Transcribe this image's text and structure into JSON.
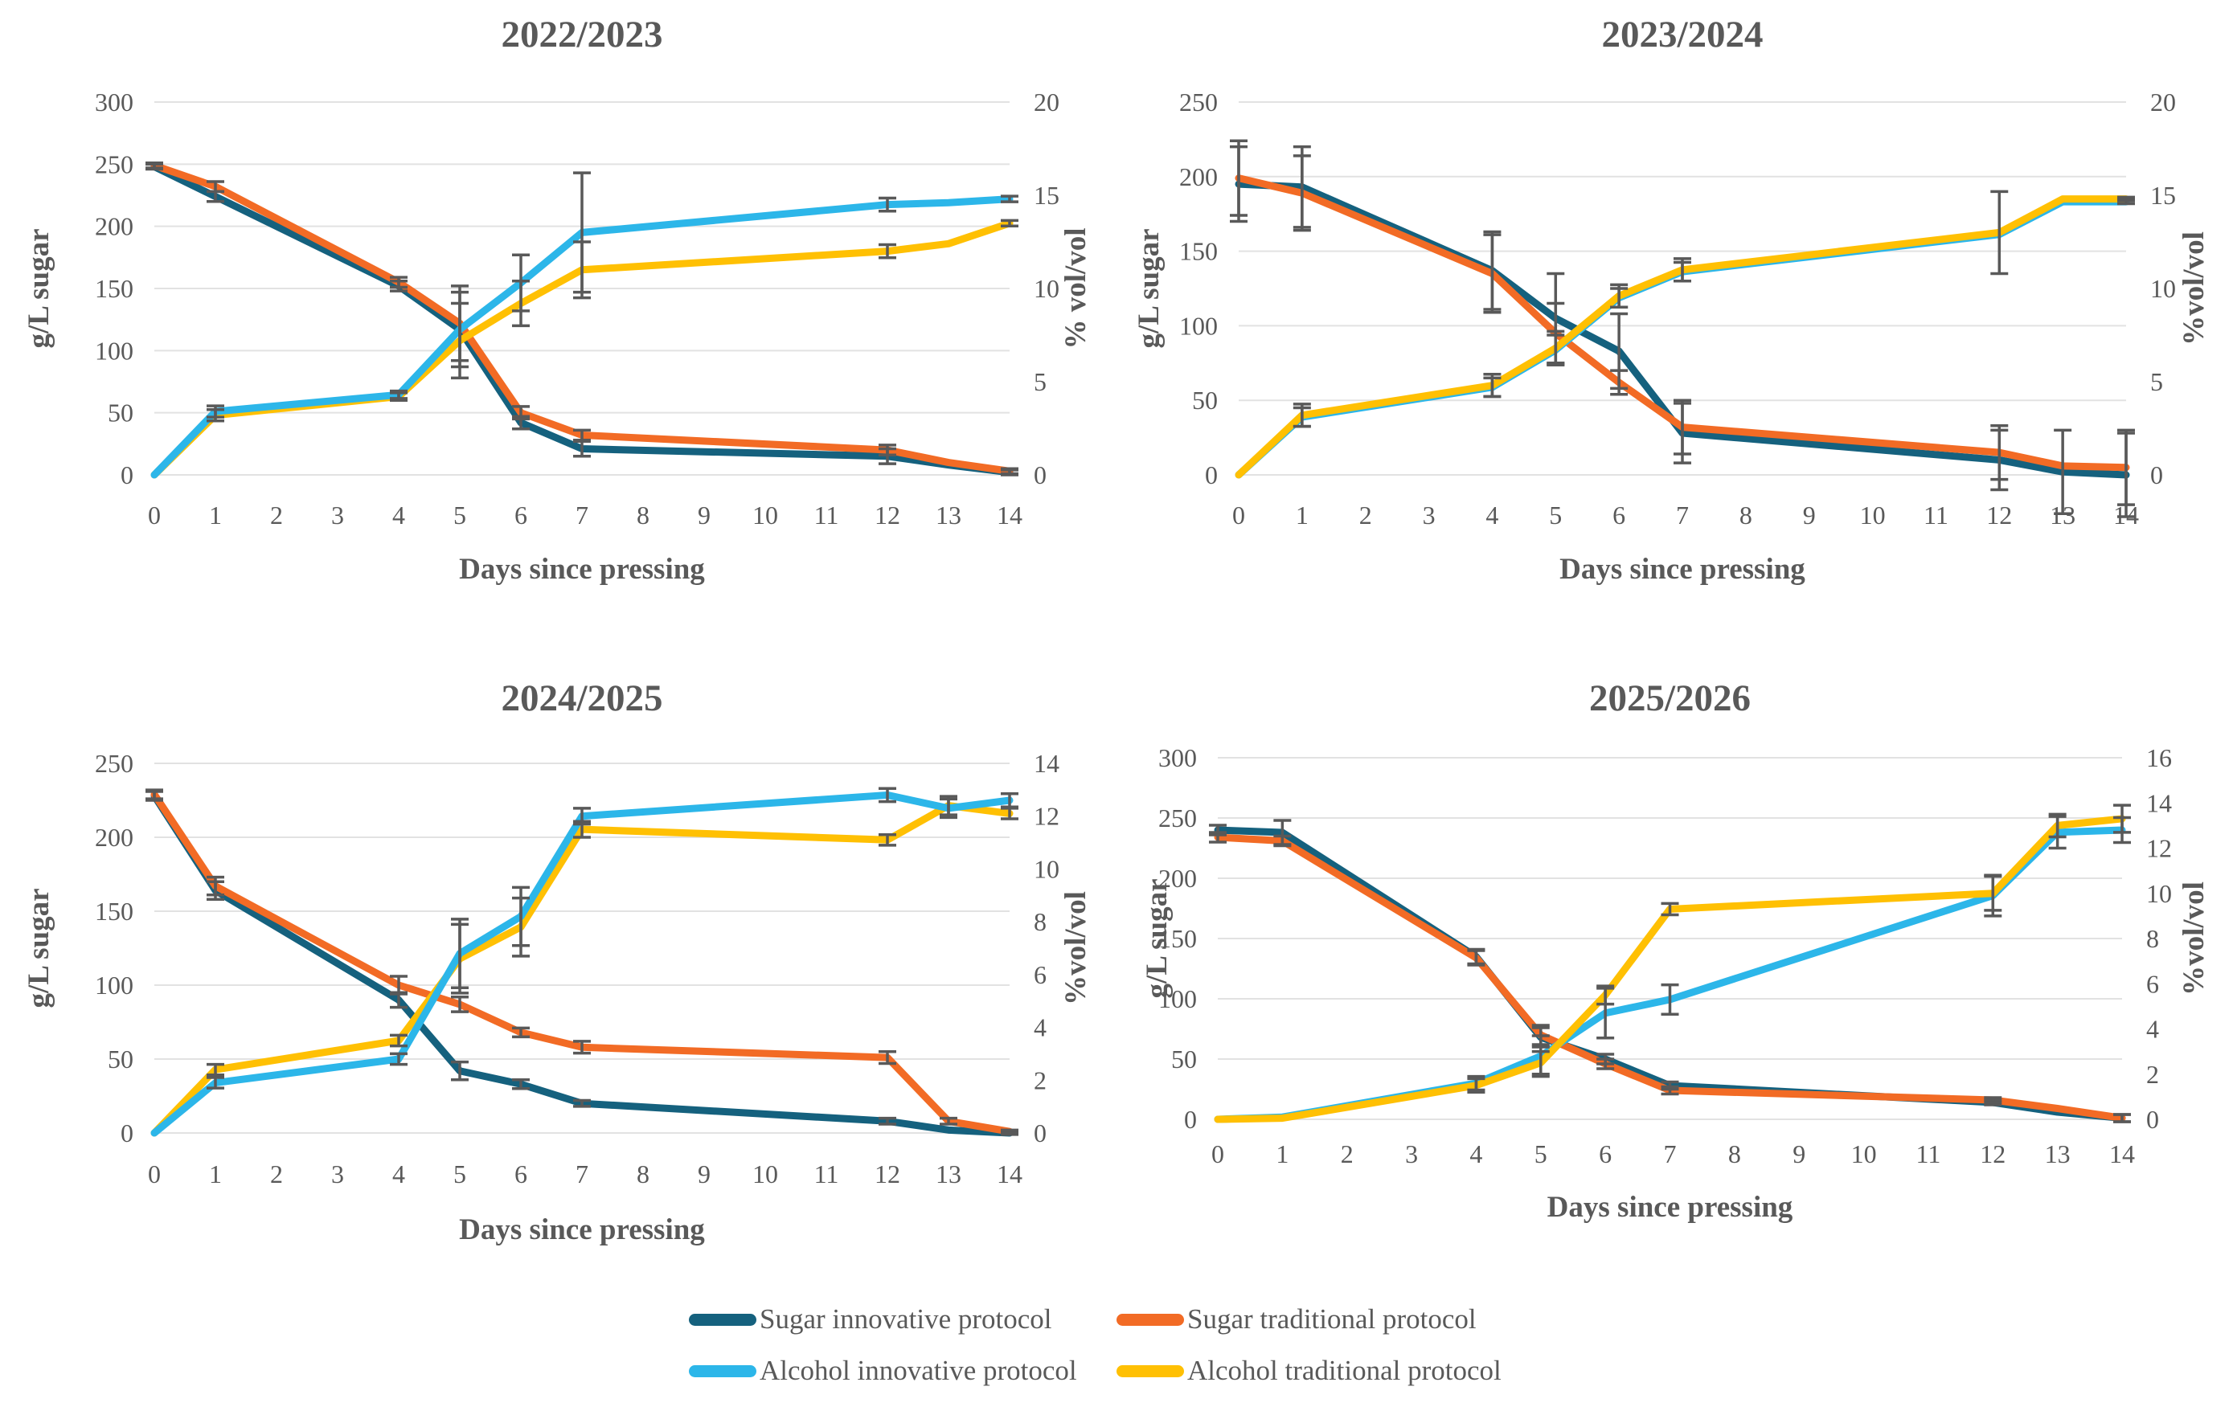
{
  "page": {
    "background": "#ffffff"
  },
  "colors": {
    "sugar_innovative": "#15617E",
    "sugar_traditional": "#F26B25",
    "alcohol_innovative": "#2CB6E9",
    "alcohol_traditional": "#FFC003",
    "gridline": "#E2E2E2",
    "axis_text": "#595959",
    "title_text": "#595959",
    "error_bar": "#595959"
  },
  "legend": {
    "items": [
      {
        "label": "Sugar innovative protocol",
        "color_key": "sugar_innovative"
      },
      {
        "label": "Sugar traditional protocol",
        "color_key": "sugar_traditional"
      },
      {
        "label": "Alcohol innovative protocol",
        "color_key": "alcohol_innovative"
      },
      {
        "label": "Alcohol traditional protocol",
        "color_key": "alcohol_traditional"
      }
    ]
  },
  "chart_data": [
    {
      "type": "line",
      "title": "2022/2023",
      "x_label": "Days since pressing",
      "x_ticks": [
        0,
        1,
        2,
        3,
        4,
        5,
        6,
        7,
        8,
        9,
        10,
        11,
        12,
        13,
        14
      ],
      "x_range": [
        0,
        14
      ],
      "left_axis": {
        "label": "g/L sugar",
        "min": 0,
        "max": 300,
        "step": 50
      },
      "right_axis": {
        "label": "% vol/vol",
        "min": 0,
        "max": 20,
        "step": 5
      },
      "grid": true,
      "x_days": [
        0,
        1,
        4,
        5,
        6,
        7,
        12,
        13,
        14
      ],
      "series": [
        {
          "key": "sugar_innovative",
          "name": "Sugar innovative protocol",
          "axis": "left",
          "values": [
            248,
            224,
            152,
            117,
            42,
            21,
            15,
            8,
            2
          ],
          "errors": [
            2,
            4,
            4,
            0,
            5,
            6,
            6,
            0,
            2
          ]
        },
        {
          "key": "sugar_traditional",
          "name": "Sugar traditional protocol",
          "axis": "left",
          "values": [
            249,
            232,
            155,
            122,
            50,
            32,
            20,
            10,
            3
          ],
          "errors": [
            2,
            4,
            4,
            30,
            5,
            4,
            4,
            0,
            2
          ]
        },
        {
          "key": "alcohol_traditional",
          "name": "Alcohol traditional protocol",
          "axis": "right",
          "values": [
            0,
            3.2,
            4.2,
            7.2,
            9.2,
            11.0,
            12.0,
            12.4,
            13.5
          ],
          "errors": [
            0,
            0.3,
            0.2,
            2.0,
            1.2,
            1.5,
            0.35,
            0,
            0.15
          ]
        },
        {
          "key": "alcohol_innovative",
          "name": "Alcohol innovative protocol",
          "axis": "right",
          "values": [
            0,
            3.4,
            4.3,
            7.8,
            10.3,
            13.0,
            14.5,
            14.6,
            14.8
          ],
          "errors": [
            0,
            0.3,
            0.2,
            2.0,
            1.5,
            3.2,
            0.35,
            0,
            0.15
          ]
        }
      ]
    },
    {
      "type": "line",
      "title": "2023/2024",
      "x_label": "Days since pressing",
      "x_ticks": [
        0,
        1,
        2,
        3,
        4,
        5,
        6,
        7,
        8,
        9,
        10,
        11,
        12,
        13,
        14
      ],
      "x_range": [
        0,
        14
      ],
      "left_axis": {
        "label": "g/L sugar",
        "min": 0,
        "max": 250,
        "step": 50
      },
      "right_axis": {
        "label": "%vol/vol",
        "min": 0,
        "max": 20,
        "step": 5
      },
      "grid": true,
      "x_days": [
        0,
        1,
        4,
        5,
        6,
        7,
        12,
        13,
        14
      ],
      "series": [
        {
          "key": "sugar_innovative",
          "name": "Sugar innovative protocol",
          "axis": "left",
          "values": [
            195,
            193,
            137,
            105,
            83,
            28,
            10,
            2,
            0
          ],
          "errors": [
            25,
            27,
            26,
            30,
            25,
            20,
            20,
            28,
            28
          ]
        },
        {
          "key": "sugar_traditional",
          "name": "Sugar traditional protocol",
          "axis": "left",
          "values": [
            199,
            189,
            135,
            95,
            62,
            32,
            15,
            6,
            5
          ],
          "errors": [
            25,
            25,
            26,
            20,
            8,
            18,
            18,
            0,
            25
          ]
        },
        {
          "key": "alcohol_innovative",
          "name": "Alcohol innovative protocol",
          "axis": "right",
          "values": [
            0,
            3.1,
            4.7,
            6.7,
            9.5,
            10.9,
            12.9,
            14.65,
            14.65
          ],
          "errors": [
            0,
            0.5,
            0.5,
            0.8,
            0.5,
            0.5,
            0,
            0,
            0.1
          ]
        },
        {
          "key": "alcohol_traditional",
          "name": "Alcohol traditional protocol",
          "axis": "right",
          "values": [
            0,
            3.2,
            4.8,
            6.8,
            9.6,
            11.0,
            13.0,
            14.8,
            14.8
          ],
          "errors": [
            0,
            0.6,
            0.6,
            0.9,
            0.6,
            0.6,
            2.2,
            0,
            0.1
          ]
        }
      ]
    },
    {
      "type": "line",
      "title": "2024/2025",
      "x_label": "Days since pressing",
      "x_ticks": [
        0,
        1,
        2,
        3,
        4,
        5,
        6,
        7,
        8,
        9,
        10,
        11,
        12,
        13,
        14
      ],
      "x_range": [
        0,
        14
      ],
      "left_axis": {
        "label": "g/L sugar",
        "min": 0,
        "max": 250,
        "step": 50
      },
      "right_axis": {
        "label": "%vol/vol",
        "min": 0,
        "max": 14,
        "step": 2
      },
      "grid": true,
      "x_days": [
        0,
        1,
        4,
        5,
        6,
        7,
        12,
        13,
        14
      ],
      "series": [
        {
          "key": "sugar_innovative",
          "name": "Sugar innovative protocol",
          "axis": "left",
          "values": [
            228,
            164,
            90,
            42,
            33,
            20,
            8,
            2,
            0
          ],
          "errors": [
            3,
            6,
            5,
            6,
            3,
            2,
            2,
            0,
            1
          ]
        },
        {
          "key": "sugar_traditional",
          "name": "Sugar traditional protocol",
          "axis": "left",
          "values": [
            229,
            167,
            100,
            87,
            68,
            58,
            51,
            8,
            1
          ],
          "errors": [
            3,
            6,
            6,
            5,
            3,
            4,
            4,
            2,
            1
          ]
        },
        {
          "key": "alcohol_traditional",
          "name": "Alcohol traditional protocol",
          "axis": "right",
          "values": [
            0,
            2.4,
            3.5,
            6.6,
            7.8,
            11.5,
            11.1,
            12.4,
            12.1
          ],
          "errors": [
            0,
            0.2,
            0.2,
            1.3,
            1.1,
            0.3,
            0.2,
            0.35,
            0.2
          ]
        },
        {
          "key": "alcohol_innovative",
          "name": "Alcohol innovative protocol",
          "axis": "right",
          "values": [
            0,
            1.9,
            2.8,
            6.8,
            8.2,
            12.0,
            12.8,
            12.3,
            12.6
          ],
          "errors": [
            0,
            0.2,
            0.2,
            1.3,
            1.1,
            0.3,
            0.25,
            0.35,
            0.25
          ]
        }
      ]
    },
    {
      "type": "line",
      "title": "2025/2026",
      "x_label": "Days since pressing",
      "x_ticks": [
        0,
        1,
        2,
        3,
        4,
        5,
        6,
        7,
        8,
        9,
        10,
        11,
        12,
        13,
        14
      ],
      "x_range": [
        0,
        14
      ],
      "left_axis": {
        "label": "g/L sugar",
        "min": 0,
        "max": 300,
        "step": 50
      },
      "right_axis": {
        "label": "%vol/vol",
        "min": 0,
        "max": 16,
        "step": 2
      },
      "grid": true,
      "x_days": [
        0,
        1,
        4,
        5,
        6,
        7,
        12,
        13,
        14
      ],
      "series": [
        {
          "key": "sugar_innovative",
          "name": "Sugar innovative protocol",
          "axis": "left",
          "values": [
            240,
            238,
            135,
            68,
            50,
            28,
            14,
            6,
            1
          ],
          "errors": [
            4,
            10,
            6,
            8,
            4,
            3,
            2,
            0,
            3
          ]
        },
        {
          "key": "sugar_traditional",
          "name": "Sugar traditional protocol",
          "axis": "left",
          "values": [
            234,
            231,
            134,
            70,
            46,
            24,
            16,
            9,
            1
          ],
          "errors": [
            4,
            4,
            6,
            8,
            4,
            3,
            2,
            0,
            3
          ]
        },
        {
          "key": "alcohol_innovative",
          "name": "Alcohol innovative protocol",
          "axis": "right",
          "values": [
            0,
            0.1,
            1.6,
            2.8,
            4.7,
            5.3,
            9.9,
            12.7,
            12.8
          ],
          "errors": [
            0,
            0,
            0.3,
            0.9,
            1.1,
            0.65,
            0.9,
            0.7,
            0.55
          ]
        },
        {
          "key": "alcohol_traditional",
          "name": "Alcohol traditional protocol",
          "axis": "right",
          "values": [
            0,
            0.05,
            1.5,
            2.5,
            5.5,
            9.3,
            10.0,
            13.0,
            13.3
          ],
          "errors": [
            0,
            0,
            0.3,
            0.5,
            0.4,
            0.25,
            0.75,
            0.5,
            0.6
          ]
        }
      ]
    }
  ]
}
